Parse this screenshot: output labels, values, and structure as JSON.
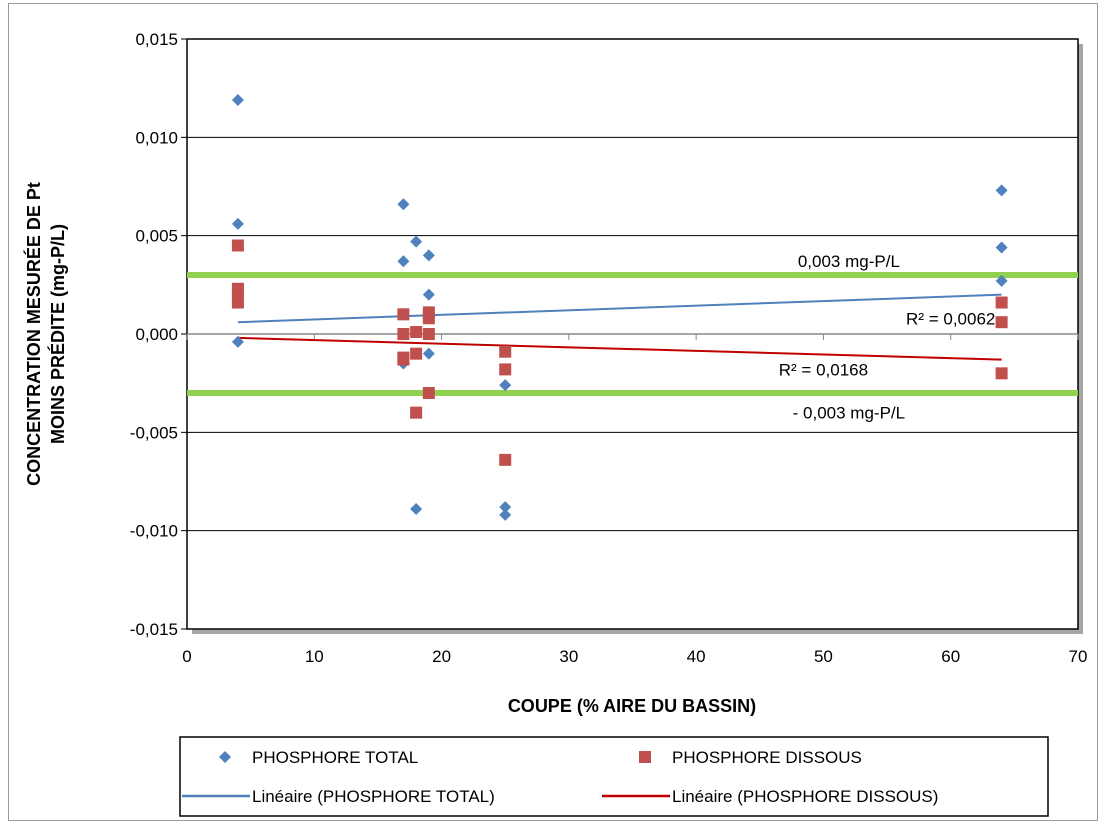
{
  "chart_data": {
    "type": "scatter",
    "xlabel": "COUPE (% AIRE DU BASSIN)",
    "ylabel_lines": [
      "CONCENTRATION MESURÉE DE Pt",
      "MOINS PRÉDITE (mg-P/L)"
    ],
    "xlim": [
      0,
      70
    ],
    "ylim": [
      -0.015,
      0.015
    ],
    "x_ticks": [
      0,
      10,
      20,
      30,
      40,
      50,
      60,
      70
    ],
    "x_tick_labels": [
      "0",
      "10",
      "20",
      "30",
      "40",
      "50",
      "60",
      "70"
    ],
    "y_ticks": [
      0.015,
      0.01,
      0.005,
      0.0,
      -0.005,
      -0.01,
      -0.015
    ],
    "y_tick_labels": [
      "0,015",
      "0,010",
      "0,005",
      "0,000",
      "-0,005",
      "-0,010",
      "-0,015"
    ],
    "grid": "horizontal",
    "series": [
      {
        "name": "PHOSPHORE TOTAL",
        "marker": "diamond",
        "color": "#4F81BD",
        "points": [
          [
            4,
            0.0119
          ],
          [
            4,
            0.0056
          ],
          [
            4,
            -0.0004
          ],
          [
            17,
            0.0066
          ],
          [
            17,
            0.0037
          ],
          [
            17,
            -0.0015
          ],
          [
            18,
            0.0047
          ],
          [
            18,
            -0.0089
          ],
          [
            19,
            0.004
          ],
          [
            19,
            0.002
          ],
          [
            19,
            -0.001
          ],
          [
            25,
            -0.0026
          ],
          [
            25,
            -0.0088
          ],
          [
            25,
            -0.0092
          ],
          [
            64,
            0.0073
          ],
          [
            64,
            0.0044
          ],
          [
            64,
            0.0027
          ]
        ]
      },
      {
        "name": "PHOSPHORE DISSOUS",
        "marker": "square",
        "color": "#C0504D",
        "points": [
          [
            4,
            0.0045
          ],
          [
            4,
            0.0023
          ],
          [
            4,
            0.002
          ],
          [
            4,
            0.0016
          ],
          [
            17,
            0.001
          ],
          [
            17,
            0.0
          ],
          [
            17,
            -0.0012
          ],
          [
            17,
            -0.0013
          ],
          [
            18,
            0.0001
          ],
          [
            18,
            -0.001
          ],
          [
            18,
            -0.004
          ],
          [
            19,
            0.0011
          ],
          [
            19,
            0.0008
          ],
          [
            19,
            0.0
          ],
          [
            19,
            -0.003
          ],
          [
            25,
            -0.0009
          ],
          [
            25,
            -0.0018
          ],
          [
            25,
            -0.0064
          ],
          [
            64,
            0.0016
          ],
          [
            64,
            0.0006
          ],
          [
            64,
            -0.002
          ]
        ]
      }
    ],
    "trendlines": [
      {
        "name": "Linéaire (PHOSPHORE TOTAL)",
        "color": "#4F81BD",
        "x": [
          4,
          64
        ],
        "y": [
          0.0006,
          0.002
        ],
        "r2_label": "R² = 0,0062",
        "r2_pos": [
          60,
          0.0008
        ]
      },
      {
        "name": "Linéaire (PHOSPHORE DISSOUS)",
        "color": "#C00000",
        "x": [
          4,
          64
        ],
        "y": [
          -0.0002,
          -0.0013
        ],
        "r2_label": "R² = 0,0168",
        "r2_pos": [
          50,
          -0.0018
        ]
      }
    ],
    "reference_lines": [
      {
        "y": 0.003,
        "color": "#92D050",
        "label": "0,003 mg-P/L",
        "label_pos": [
          52,
          0.0037
        ]
      },
      {
        "y": -0.003,
        "color": "#92D050",
        "label": "- 0,003 mg-P/L",
        "label_pos": [
          52,
          -0.004
        ]
      }
    ],
    "legend": {
      "placement": "bottom",
      "entries": [
        {
          "label": "PHOSPHORE TOTAL",
          "kind": "diamond",
          "color": "#4F81BD"
        },
        {
          "label": "PHOSPHORE DISSOUS",
          "kind": "square",
          "color": "#C0504D"
        },
        {
          "label": "Linéaire (PHOSPHORE TOTAL)",
          "kind": "line",
          "color": "#4F81BD"
        },
        {
          "label": "Linéaire (PHOSPHORE DISSOUS)",
          "kind": "line",
          "color": "#C00000"
        }
      ]
    }
  }
}
